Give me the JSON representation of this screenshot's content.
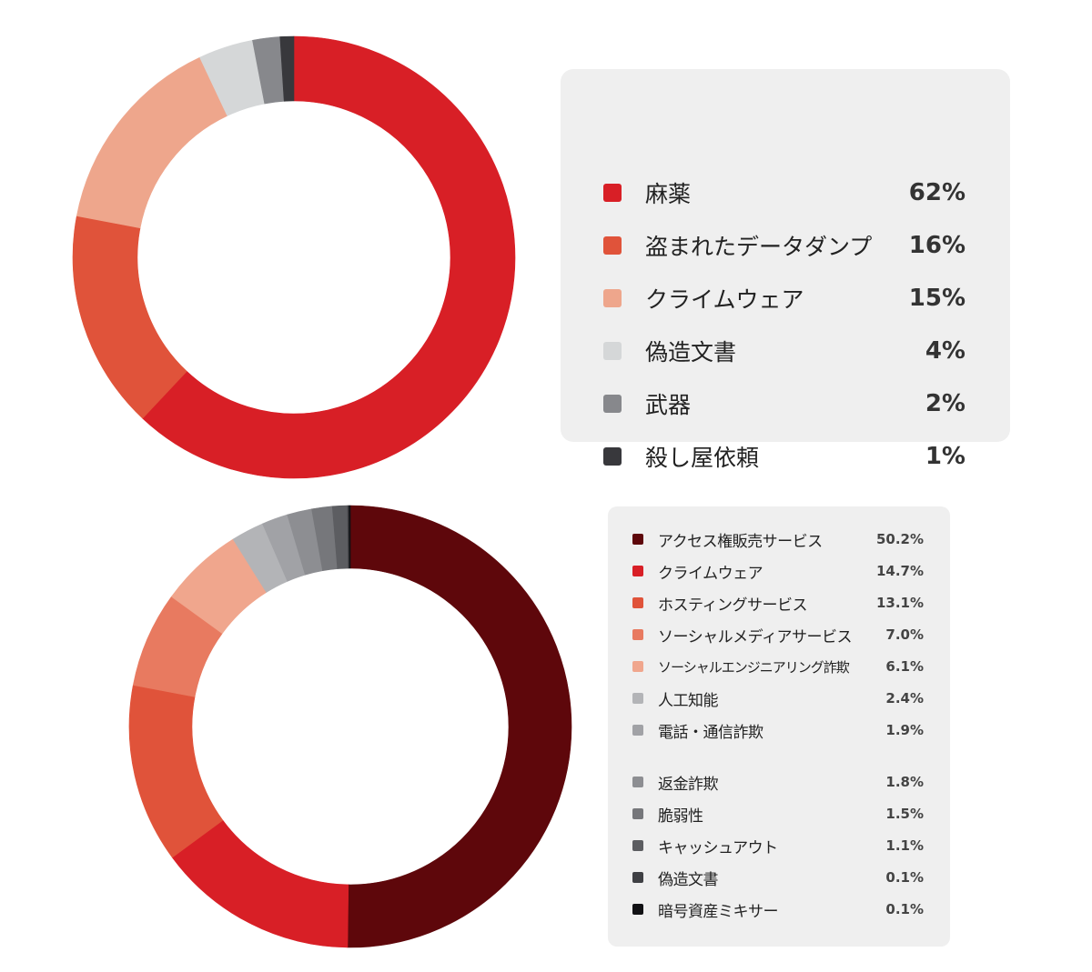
{
  "charts": [
    {
      "type": "pie",
      "style": "donut",
      "legend_placement": "right",
      "items": [
        {
          "label": "麻薬",
          "value": 62,
          "value_label": "62%",
          "color": "#d81f26"
        },
        {
          "label": "盗まれたデータダンプ",
          "value": 16,
          "value_label": "16%",
          "color": "#e0533a"
        },
        {
          "label": "クライムウェア",
          "value": 15,
          "value_label": "15%",
          "color": "#eea68c"
        },
        {
          "label": "偽造文書",
          "value": 4,
          "value_label": "4%",
          "color": "#d5d7d8"
        },
        {
          "label": "武器",
          "value": 2,
          "value_label": "2%",
          "color": "#87888c"
        },
        {
          "label": "殺し屋依頼",
          "value": 1,
          "value_label": "1%",
          "color": "#38383c"
        }
      ]
    },
    {
      "type": "pie",
      "style": "donut",
      "legend_placement": "right",
      "items": [
        {
          "label": "アクセス権販売サービス",
          "value": 50.2,
          "value_label": "50.2%",
          "color": "#5e070b"
        },
        {
          "label": "クライムウェア",
          "value": 14.7,
          "value_label": "14.7%",
          "color": "#d81f26"
        },
        {
          "label": "ホスティングサービス",
          "value": 13.1,
          "value_label": "13.1%",
          "color": "#e0533a"
        },
        {
          "label": "ソーシャルメディアサービス",
          "value": 7.0,
          "value_label": "7.0%",
          "color": "#e87a60"
        },
        {
          "label": "ソーシャルエンジニアリング詐欺",
          "value": 6.1,
          "value_label": "6.1%",
          "color": "#f0a68d"
        },
        {
          "label": "人工知能",
          "value": 2.4,
          "value_label": "2.4%",
          "color": "#b3b4b7"
        },
        {
          "label": "電話・通信詐欺",
          "value": 1.9,
          "value_label": "1.9%",
          "color": "#a1a2a6"
        },
        {
          "label": "返金詐欺",
          "value": 1.8,
          "value_label": "1.8%",
          "color": "#8d8e92"
        },
        {
          "label": "脆弱性",
          "value": 1.5,
          "value_label": "1.5%",
          "color": "#76777b"
        },
        {
          "label": "キャッシュアウト",
          "value": 1.1,
          "value_label": "1.1%",
          "color": "#5c5d61"
        },
        {
          "label": "偽造文書",
          "value": 0.1,
          "value_label": "0.1%",
          "color": "#3f4044"
        },
        {
          "label": "暗号資産ミキサー",
          "value": 0.1,
          "value_label": "0.1%",
          "color": "#111114"
        }
      ]
    }
  ],
  "chart_data": [
    {
      "type": "pie",
      "categories": [
        "麻薬",
        "盗まれたデータダンプ",
        "クライムウェア",
        "偽造文書",
        "武器",
        "殺し屋依頼"
      ],
      "values": [
        62,
        16,
        15,
        4,
        2,
        1
      ],
      "title": "",
      "legend": "right"
    },
    {
      "type": "pie",
      "categories": [
        "アクセス権販売サービス",
        "クライムウェア",
        "ホスティングサービス",
        "ソーシャルメディアサービス",
        "ソーシャルエンジニアリング詐欺",
        "人工知能",
        "電話・通信詐欺",
        "返金詐欺",
        "脆弱性",
        "キャッシュアウト",
        "偽造文書",
        "暗号資産ミキサー"
      ],
      "values": [
        50.2,
        14.7,
        13.1,
        7.0,
        6.1,
        2.4,
        1.9,
        1.8,
        1.5,
        1.1,
        0.1,
        0.1
      ],
      "title": "",
      "legend": "right"
    }
  ]
}
